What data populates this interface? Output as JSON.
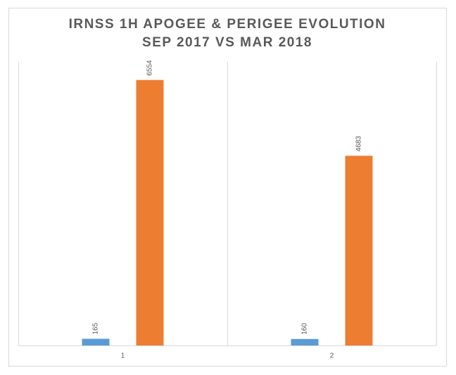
{
  "chart_data": {
    "type": "bar",
    "title": "IRNSS 1H APOGEE & PERIGEE EVOLUTION",
    "subtitle": "SEP 2017 VS MAR 2018",
    "categories": [
      "1",
      "2"
    ],
    "series": [
      {
        "color": "#5b9bd5",
        "values": [
          165,
          160
        ]
      },
      {
        "color": "#ed7d31",
        "values": [
          6554,
          4683
        ]
      }
    ],
    "ylim": [
      0,
      7000
    ]
  }
}
